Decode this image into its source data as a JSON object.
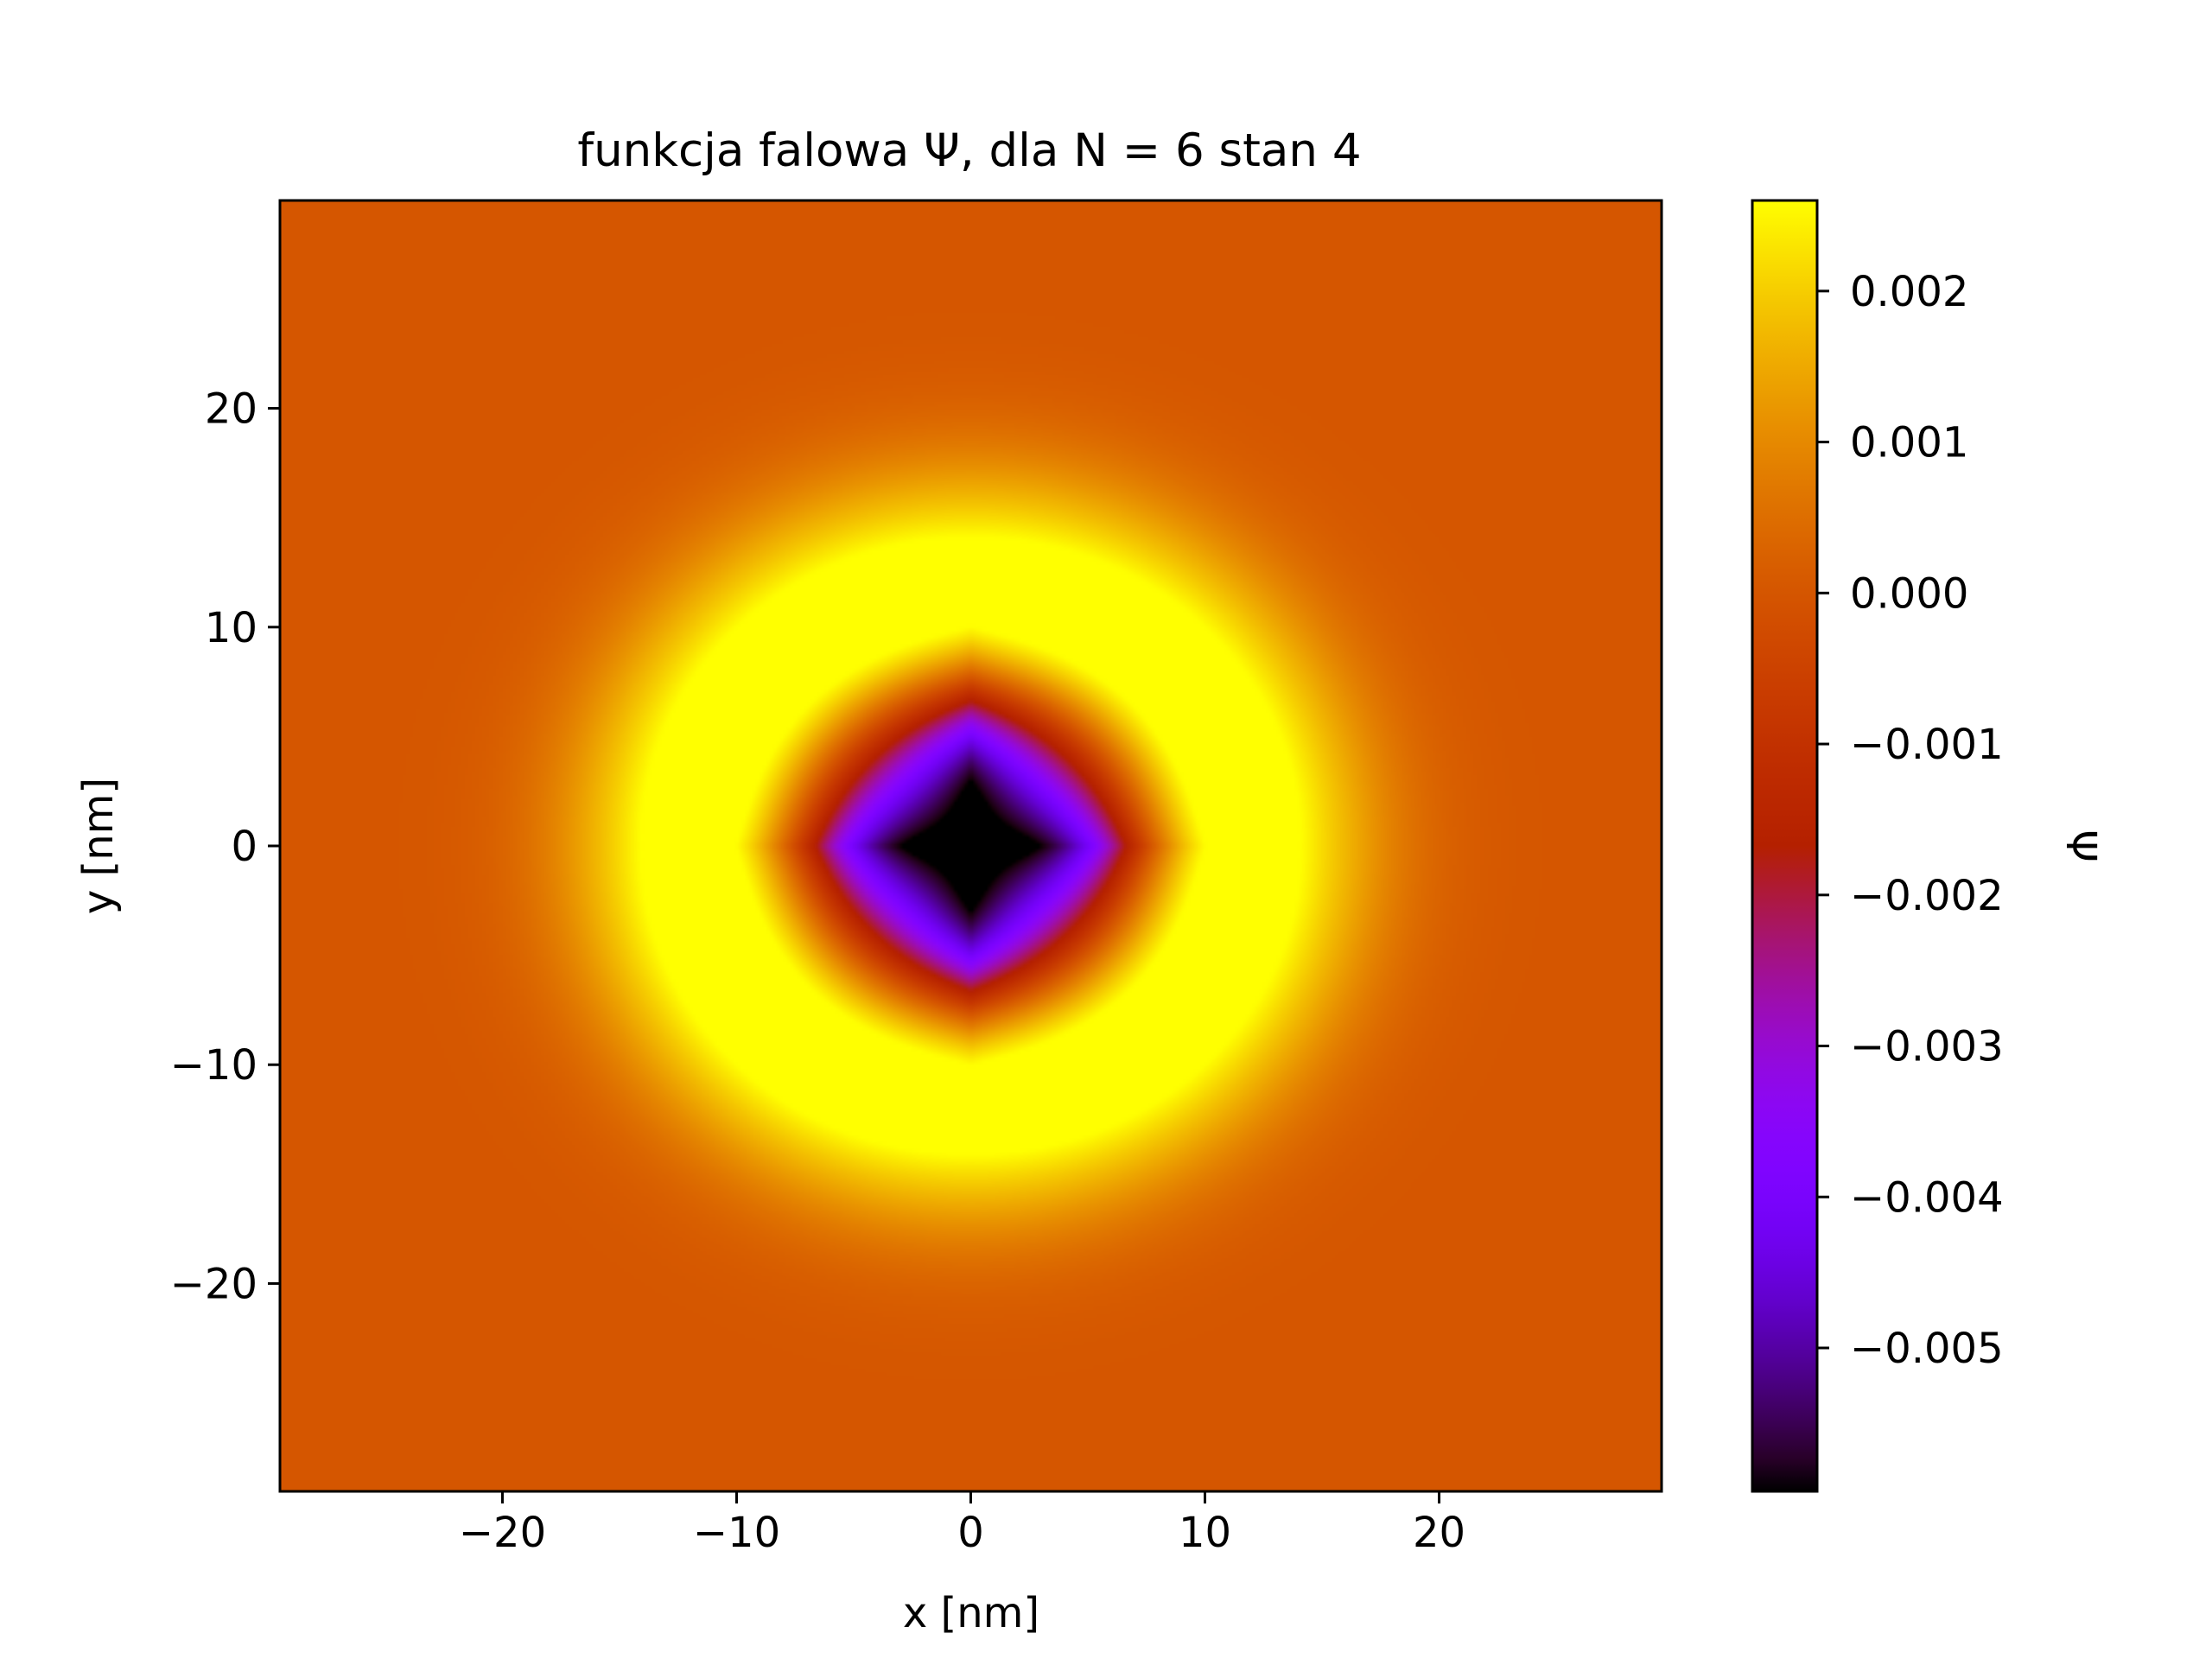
{
  "chart_data": {
    "type": "heatmap",
    "title": "funkcja falowa Ψ, dla N = 6 stan 4",
    "xlabel": "x [nm]",
    "ylabel": "y [nm]",
    "xlim": [
      -29.5,
      29.5
    ],
    "ylim": [
      -29.5,
      29.5
    ],
    "x_ticks": [
      -20,
      -10,
      0,
      10,
      20
    ],
    "x_tick_labels": [
      "−20",
      "−10",
      "0",
      "10",
      "20"
    ],
    "y_ticks": [
      -20,
      -10,
      0,
      10,
      20
    ],
    "y_tick_labels": [
      "−20",
      "−10",
      "0",
      "10",
      "20"
    ],
    "grid": false,
    "colorbar": {
      "label": "Ψ",
      "colormap": "gnuplot",
      "vmin": -0.00595,
      "vmax": 0.0026,
      "ticks": [
        0.002,
        0.001,
        0.0,
        -0.001,
        -0.002,
        -0.003,
        -0.004,
        -0.005
      ],
      "tick_labels": [
        "0.002",
        "0.001",
        "0.000",
        "−0.001",
        "−0.002",
        "−0.003",
        "−0.004",
        "−0.005"
      ]
    },
    "field_features": {
      "background_value": 0.0,
      "center_value": -0.0059,
      "central_lobe_shape": "diamond",
      "central_lobe_half_width_nm": 4.5,
      "negative_ring_radius_nm": 7,
      "positive_ring_radius_nm": 11,
      "positive_ring_peak": 0.0026,
      "decay_length_nm": 12
    }
  }
}
